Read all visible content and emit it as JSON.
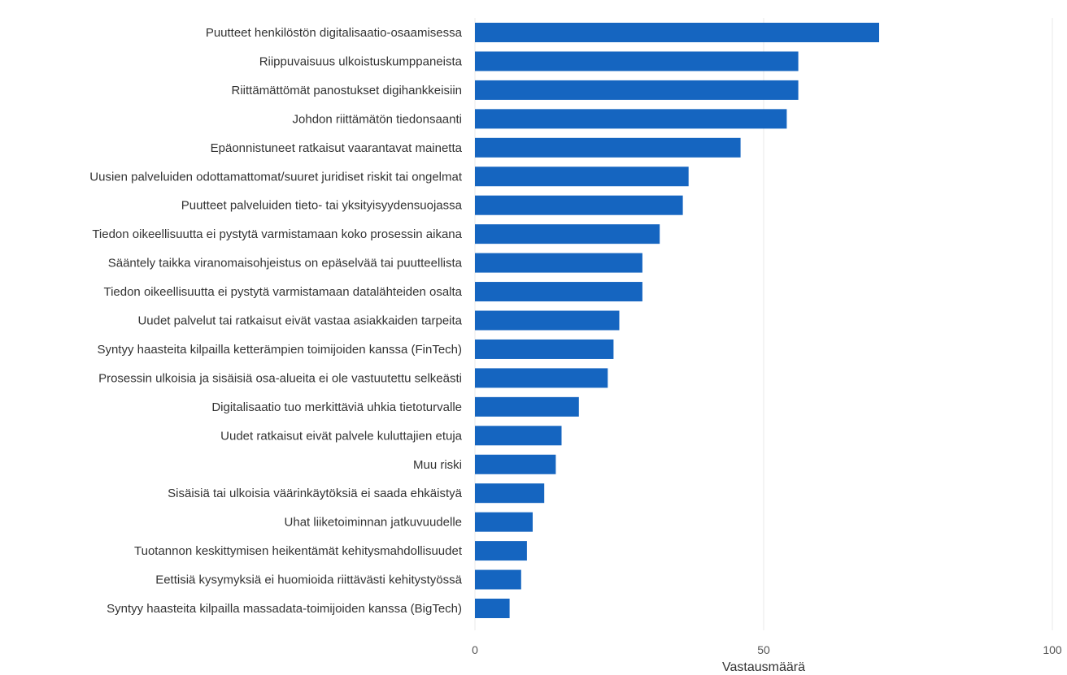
{
  "chart_data": {
    "type": "bar",
    "orientation": "horizontal",
    "categories": [
      "Puutteet henkilöstön digitalisaatio-osaamisessa",
      "Riippuvaisuus ulkoistuskumppaneista",
      "Riittämättömät panostukset digihankkeisiin",
      "Johdon riittämätön tiedonsaanti",
      "Epäonnistuneet ratkaisut vaarantavat mainetta",
      "Uusien palveluiden odottamattomat/suuret juridiset riskit tai ongelmat",
      "Puutteet palveluiden tieto- tai yksityisyydensuojassa",
      "Tiedon oikeellisuutta ei pystytä varmistamaan koko prosessin aikana",
      "Sääntely taikka viranomaisohjeistus on epäselvää tai puutteellista",
      "Tiedon oikeellisuutta ei pystytä varmistamaan datalähteiden osalta",
      "Uudet palvelut tai ratkaisut eivät vastaa asiakkaiden tarpeita",
      "Syntyy haasteita kilpailla ketterämpien toimijoiden kanssa (FinTech)",
      "Prosessin ulkoisia ja sisäisiä osa-alueita ei ole vastuutettu selkeästi",
      "Digitalisaatio tuo merkittäviä uhkia tietoturvalle",
      "Uudet ratkaisut eivät palvele kuluttajien etuja",
      "Muu riski",
      "Sisäisiä tai ulkoisia väärinkäytöksiä ei saada ehkäistyä",
      "Uhat liiketoiminnan jatkuvuudelle",
      "Tuotannon keskittymisen heikentämät kehitysmahdollisuudet",
      "Eettisiä kysymyksiä ei huomioida riittävästi kehitystyössä",
      "Syntyy haasteita kilpailla massadata-toimijoiden kanssa (BigTech)"
    ],
    "values": [
      70,
      56,
      56,
      54,
      46,
      37,
      36,
      32,
      29,
      29,
      25,
      24,
      23,
      18,
      15,
      14,
      12,
      10,
      9,
      8,
      6
    ],
    "xlabel": "Vastausmäärä",
    "ylabel": "",
    "xlim": [
      0,
      100
    ],
    "xticks": [
      "0",
      "50",
      "100"
    ],
    "bar_color": "#1565c0",
    "grid": true
  }
}
